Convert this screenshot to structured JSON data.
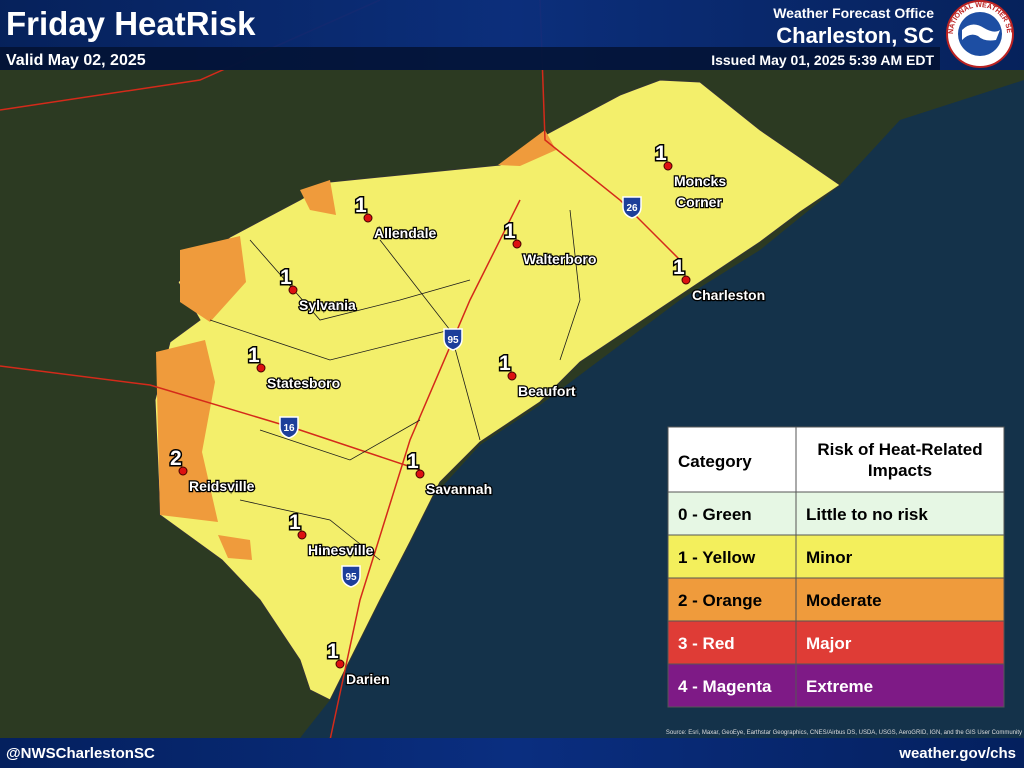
{
  "header": {
    "title": "Friday HeatRisk",
    "valid": "Valid May 02, 2025",
    "office": "Weather Forecast Office",
    "location": "Charleston, SC",
    "issued": "Issued May 01, 2025 5:39 AM EDT",
    "logo": "NATIONAL WEATHER SERVICE"
  },
  "cities": [
    {
      "name": "Moncks Corner",
      "risk": 1
    },
    {
      "name": "Allendale",
      "risk": 1
    },
    {
      "name": "Walterboro",
      "risk": 1
    },
    {
      "name": "Sylvania",
      "risk": 1
    },
    {
      "name": "Charleston",
      "risk": 1
    },
    {
      "name": "Statesboro",
      "risk": 1
    },
    {
      "name": "Beaufort",
      "risk": 1
    },
    {
      "name": "Reidsville",
      "risk": 2
    },
    {
      "name": "Savannah",
      "risk": 1
    },
    {
      "name": "Hinesville",
      "risk": 1
    },
    {
      "name": "Darien",
      "risk": 1
    }
  ],
  "highways": [
    "26",
    "95",
    "16",
    "95"
  ],
  "legend": {
    "headers": [
      "Category",
      "Risk of Heat-Related Impacts"
    ],
    "rows": [
      [
        "0 - Green",
        "Little to no risk"
      ],
      [
        "1 - Yellow",
        "Minor"
      ],
      [
        "2 - Orange",
        "Moderate"
      ],
      [
        "3 - Red",
        "Major"
      ],
      [
        "4 - Magenta",
        "Extreme"
      ]
    ]
  },
  "footer": {
    "social": "@NWSCharlestonSC",
    "website": "weather.gov/chs",
    "source": "Source: Esri, Maxar, GeoEye, Earthstar Geographics, CNES/Airbus DS, USDA, USGS, AeroGRID, IGN, and the GIS User Community"
  }
}
